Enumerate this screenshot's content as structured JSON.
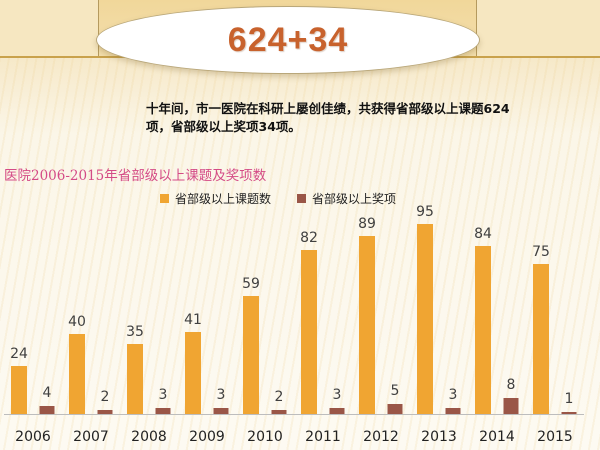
{
  "header": {
    "title": "624+34"
  },
  "summary": {
    "line1": "十年间，市一医院在科研上屡创佳绩，共获得省部级以上课题624",
    "line2": "项，省部级以上奖项34项。"
  },
  "colors": {
    "topics": "#f0a532",
    "awards": "#9a5647",
    "title_accent": "#c8622d",
    "chart_title": "#d44b86"
  },
  "chart_data": {
    "type": "bar",
    "title": "医院2006-2015年省部级以上课题及奖项数",
    "categories": [
      "2006",
      "2007",
      "2008",
      "2009",
      "2010",
      "2011",
      "2012",
      "2013",
      "2014",
      "2015"
    ],
    "series": [
      {
        "name": "省部级以上课题数",
        "values": [
          24,
          40,
          35,
          41,
          59,
          82,
          89,
          95,
          84,
          75
        ]
      },
      {
        "name": "省部级以上奖项",
        "values": [
          4,
          2,
          3,
          3,
          2,
          3,
          5,
          3,
          8,
          1
        ]
      }
    ],
    "legend_position": "top",
    "grid": false,
    "data_labels": true,
    "xlabel": "",
    "ylabel": "",
    "ylim": [
      0,
      100
    ]
  }
}
